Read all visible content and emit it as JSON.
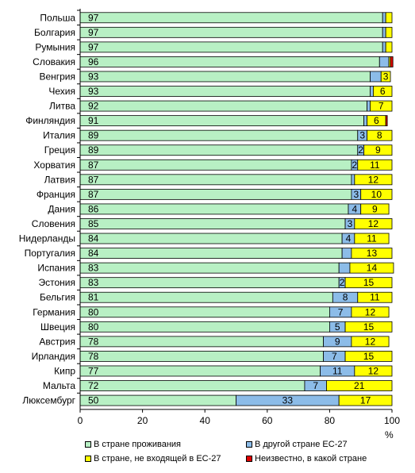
{
  "chart_data": {
    "type": "bar",
    "orientation": "horizontal",
    "stacked": true,
    "categories": [
      "Польша",
      "Болгария",
      "Румыния",
      "Словакия",
      "Венгрия",
      "Чехия",
      "Литва",
      "Финляндия",
      "Италия",
      "Греция",
      "Хорватия",
      "Латвия",
      "Франция",
      "Дания",
      "Словения",
      "Нидерланды",
      "Португалия",
      "Испания",
      "Эстония",
      "Бельгия",
      "Германия",
      "Швеция",
      "Австрия",
      "Ирландия",
      "Кипр",
      "Мальта",
      "Люксембург"
    ],
    "series": [
      {
        "name": "В стране проживания",
        "color": "#b8f0c4",
        "values": [
          97,
          97,
          97,
          96,
          93,
          93,
          92,
          91,
          89,
          89,
          87,
          87,
          87,
          86,
          85,
          84,
          84,
          83,
          83,
          81,
          80,
          80,
          78,
          78,
          77,
          72,
          50
        ],
        "labels": [
          "97",
          "97",
          "97",
          "96",
          "93",
          "93",
          "92",
          "91",
          "89",
          "89",
          "87",
          "87",
          "87",
          "86",
          "85",
          "84",
          "84",
          "83",
          "83",
          "81",
          "80",
          "80",
          "78",
          "78",
          "77",
          "72",
          "50"
        ]
      },
      {
        "name": "В другой стране ЕС-27",
        "color": "#8cbce8",
        "values": [
          1,
          1,
          1,
          3,
          3.5,
          1,
          1,
          1,
          3,
          2,
          2,
          1,
          3,
          4,
          3,
          4,
          3,
          3.5,
          2,
          8,
          7,
          5,
          9,
          7,
          11,
          7,
          33
        ],
        "labels": [
          "",
          "",
          "",
          "",
          "",
          "",
          "",
          "",
          "3",
          "2",
          "2",
          "",
          "3",
          "4",
          "3",
          "4",
          "",
          "",
          "2",
          "8",
          "7",
          "5",
          "9",
          "7",
          "11",
          "7",
          "33"
        ]
      },
      {
        "name": "В стране, не входящей в ЕС-27",
        "color": "#ffff00",
        "values": [
          2,
          2,
          2,
          0.5,
          3,
          6,
          7,
          6,
          8,
          9,
          11,
          12,
          10,
          9,
          12,
          11,
          13,
          14,
          15,
          11,
          12,
          15,
          12,
          15,
          12,
          21,
          17
        ],
        "labels": [
          "",
          "",
          "",
          "",
          "3",
          "6",
          "7",
          "6",
          "8",
          "9",
          "11",
          "12",
          "10",
          "9",
          "12",
          "11",
          "13",
          "14",
          "15",
          "11",
          "12",
          "15",
          "12",
          "15",
          "12",
          "21",
          "17"
        ]
      },
      {
        "name": "Неизвестно, в какой стране",
        "color": "#e00000",
        "values": [
          0,
          0,
          0,
          0.8,
          0,
          0,
          0,
          0.5,
          0,
          0,
          0,
          0,
          0,
          0,
          0,
          0,
          0,
          0,
          0,
          0,
          0,
          0,
          0,
          0,
          0,
          0,
          0
        ],
        "labels": [
          "",
          "",
          "",
          "",
          "",
          "",
          "",
          "",
          "",
          "",
          "",
          "",
          "",
          "",
          "",
          "",
          "",
          "",
          "",
          "",
          "",
          "",
          "",
          "",
          "",
          "",
          ""
        ]
      }
    ],
    "xlim": [
      0,
      100
    ],
    "xticks": [
      "0",
      "20",
      "40",
      "60",
      "80",
      "100"
    ],
    "xlabel": "%",
    "grid": false,
    "legend_position": "bottom"
  }
}
